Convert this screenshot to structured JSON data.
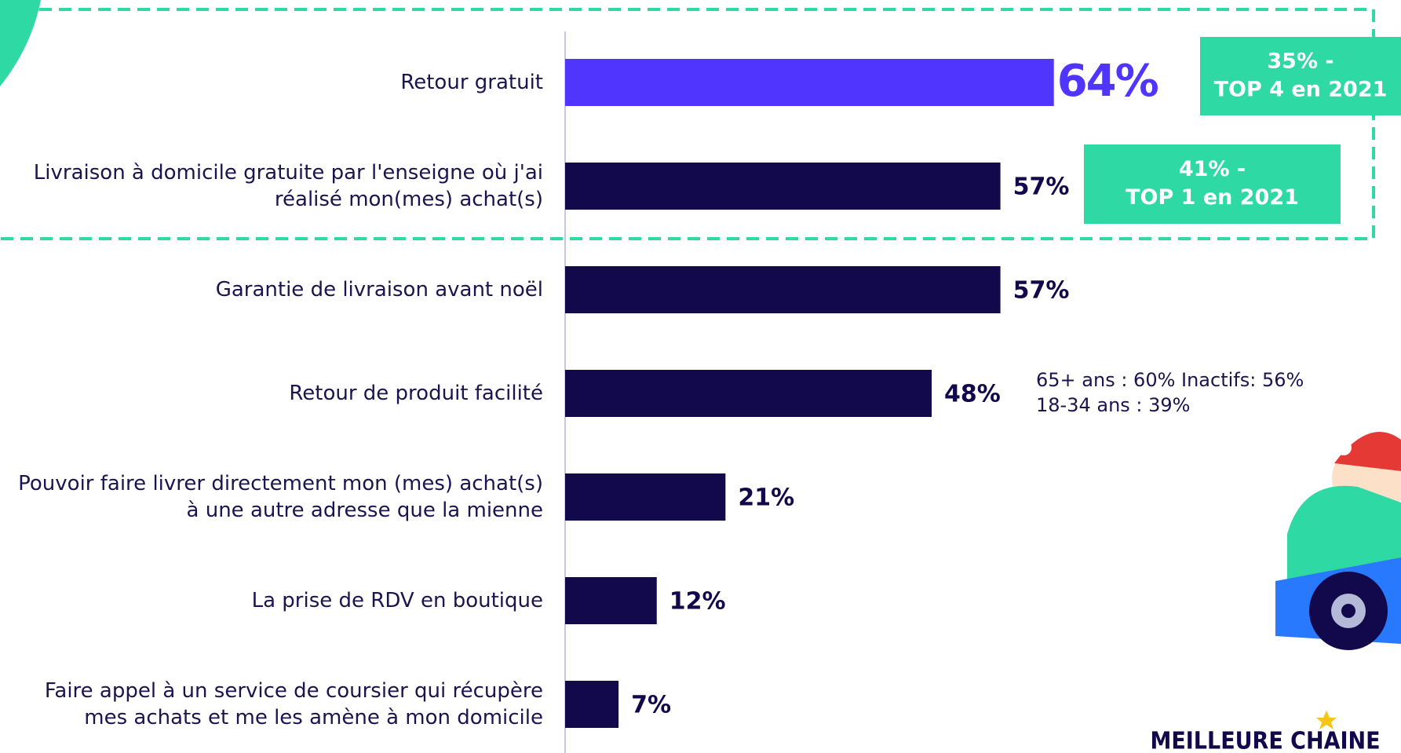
{
  "chart_data": {
    "type": "bar",
    "orientation": "horizontal",
    "categories": [
      "Retour gratuit",
      "Livraison à domicile gratuite par l'enseigne où j'ai réalisé mon(mes) achat(s)",
      "Garantie de livraison avant noël",
      "Retour de produit facilité",
      "Pouvoir faire livrer directement mon (mes) achat(s) à une autre adresse que la mienne",
      "La prise de RDV en boutique",
      "Faire appel à un service de coursier qui récupère mes achats et me les amène à mon domicile"
    ],
    "values": [
      64,
      57,
      57,
      48,
      21,
      12,
      7
    ],
    "value_labels": [
      "64%",
      "57%",
      "57%",
      "48%",
      "21%",
      "12%",
      "7%"
    ],
    "colors": [
      "#5035ff",
      "#12084c",
      "#12084c",
      "#12084c",
      "#12084c",
      "#12084c",
      "#12084c"
    ],
    "annotations": [
      {
        "lines": [
          "35% -",
          "TOP 4 en 2021"
        ],
        "color": "#2ed9a4"
      },
      {
        "lines": [
          "41% -",
          "TOP 1 en 2021"
        ],
        "color": "#2ed9a4"
      },
      {
        "lines": [
          "65+ ans : 60%  Inactifs: 56%",
          "18-34 ans : 39%"
        ]
      }
    ],
    "logo": "MEILLEURE CHAINE"
  }
}
